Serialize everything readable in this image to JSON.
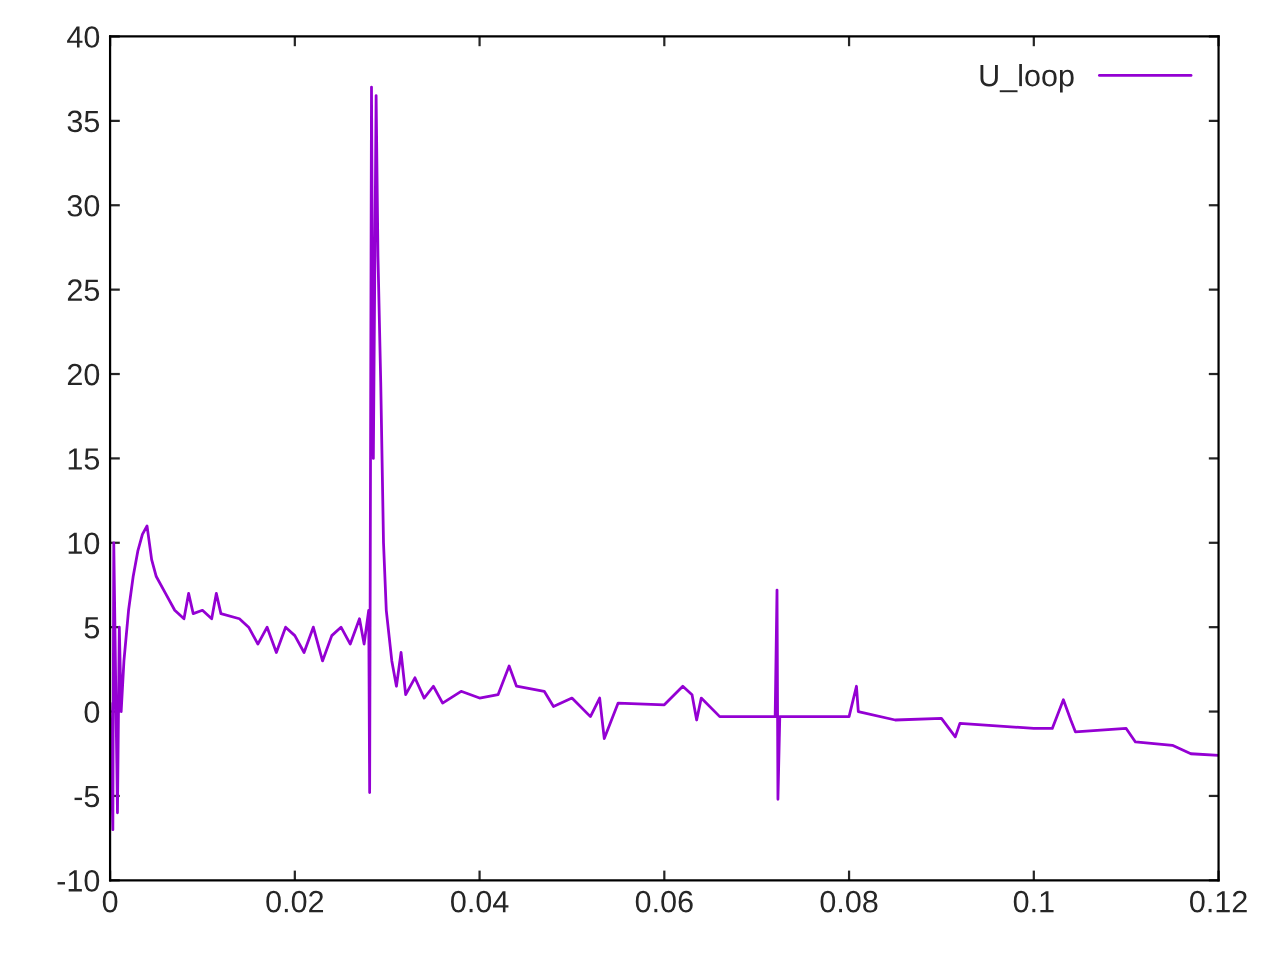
{
  "chart_data": {
    "type": "line",
    "xlim": [
      0,
      0.12
    ],
    "ylim": [
      -10,
      40
    ],
    "xticks": [
      0,
      0.02,
      0.04,
      0.06,
      0.08,
      0.1,
      0.12
    ],
    "yticks": [
      -10,
      -5,
      0,
      5,
      10,
      15,
      20,
      25,
      30,
      35,
      40
    ],
    "legend": "top right",
    "grid": false,
    "series": [
      {
        "name": "U_loop",
        "color": "#9400d3",
        "x": [
          0,
          0.0003,
          0.0004,
          0.0008,
          0.001,
          0.0012,
          0.0015,
          0.002,
          0.0025,
          0.003,
          0.0035,
          0.004,
          0.0045,
          0.005,
          0.006,
          0.007,
          0.008,
          0.0085,
          0.009,
          0.01,
          0.011,
          0.0115,
          0.012,
          0.014,
          0.015,
          0.016,
          0.017,
          0.018,
          0.019,
          0.02,
          0.021,
          0.022,
          0.023,
          0.024,
          0.025,
          0.026,
          0.027,
          0.0275,
          0.028,
          0.0281,
          0.0283,
          0.0285,
          0.0288,
          0.029,
          0.0293,
          0.0296,
          0.0299,
          0.0305,
          0.031,
          0.0315,
          0.032,
          0.033,
          0.034,
          0.035,
          0.036,
          0.038,
          0.04,
          0.042,
          0.0432,
          0.044,
          0.047,
          0.048,
          0.05,
          0.052,
          0.053,
          0.0535,
          0.055,
          0.06,
          0.062,
          0.063,
          0.0635,
          0.064,
          0.066,
          0.072,
          0.0722,
          0.0723,
          0.0725,
          0.08,
          0.0808,
          0.081,
          0.085,
          0.09,
          0.0915,
          0.092,
          0.1,
          0.102,
          0.1032,
          0.104,
          0.1045,
          0.11,
          0.111,
          0.115,
          0.117,
          0.12
        ],
        "values": [
          0.5,
          -7,
          10,
          -6,
          5,
          0,
          3,
          6,
          8,
          9.5,
          10.5,
          11,
          9,
          8,
          7,
          6,
          5.5,
          7,
          5.8,
          6,
          5.5,
          7,
          5.8,
          5.5,
          5,
          4,
          5,
          3.5,
          5,
          4.5,
          3.5,
          5,
          3,
          4.5,
          5,
          4,
          5.5,
          4,
          6,
          -4.8,
          37,
          15,
          36.5,
          27,
          19.5,
          10,
          6,
          3,
          1.5,
          3.5,
          1,
          2,
          0.8,
          1.5,
          0.5,
          1.2,
          0.8,
          1,
          2.7,
          1.5,
          1.2,
          0.3,
          0.8,
          -0.3,
          0.8,
          -1.6,
          0.5,
          0.4,
          1.5,
          1,
          -0.5,
          0.8,
          -0.3,
          -0.3,
          7.2,
          -5.2,
          -0.3,
          -0.3,
          1.5,
          0,
          -0.5,
          -0.4,
          -1.5,
          -0.7,
          -1,
          -1,
          0.7,
          -0.5,
          -1.2,
          -1,
          -1.8,
          -2,
          -2.5,
          -2.6
        ]
      }
    ]
  }
}
